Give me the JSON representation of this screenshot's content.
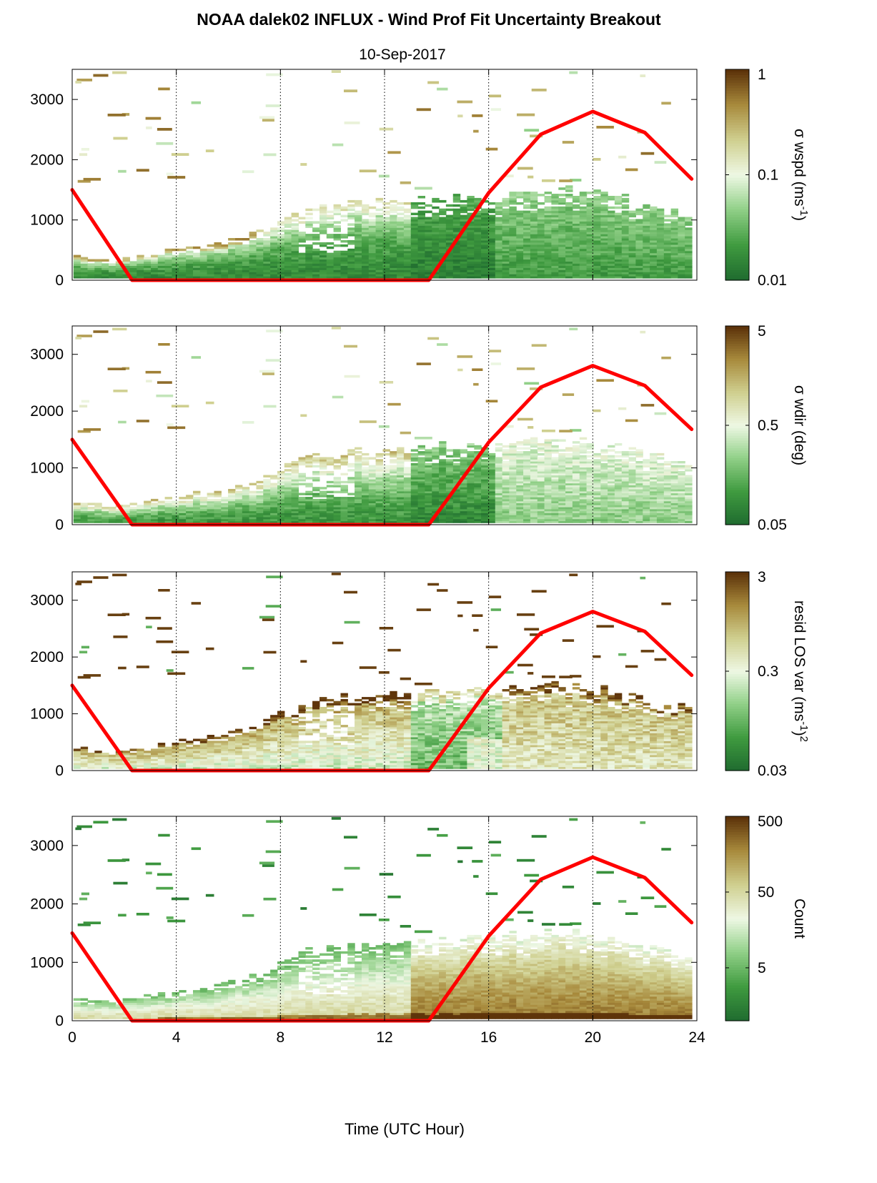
{
  "figure": {
    "title": "NOAA dalek02 INFLUX - Wind Prof Fit Uncertainty Breakout",
    "subtitle": "10-Sep-2017",
    "xlabel": "Time (UTC Hour)"
  },
  "chart_data": [
    {
      "type": "heatmap",
      "panel": "sigma-wspd",
      "xlim": [
        0,
        24
      ],
      "ylim": [
        0,
        3500
      ],
      "xticks": [
        "0",
        "4",
        "8",
        "12",
        "16",
        "20",
        "24"
      ],
      "yticks": [
        "0",
        "1000",
        "2000",
        "3000"
      ],
      "colorbar": {
        "scale": "log",
        "range": [
          0.01,
          1
        ],
        "ticks": [
          "0.01",
          "0.1",
          "1"
        ],
        "label_symbol": "σ",
        "label": "wspd (ms",
        "label_sup": "-1",
        "label_end": ")"
      },
      "grid_x": [
        4,
        8,
        12,
        16,
        20
      ],
      "overlay_line": {
        "color": "#ff0000",
        "points": [
          [
            0,
            1500
          ],
          [
            2.3,
            0
          ],
          [
            13.7,
            0
          ],
          [
            14.5,
            500
          ],
          [
            16,
            1450
          ],
          [
            18,
            2420
          ],
          [
            20,
            2800
          ],
          [
            22,
            2450
          ],
          [
            23.8,
            1680
          ]
        ]
      }
    },
    {
      "type": "heatmap",
      "panel": "sigma-wdir",
      "xlim": [
        0,
        24
      ],
      "ylim": [
        0,
        3500
      ],
      "xticks": [
        "0",
        "4",
        "8",
        "12",
        "16",
        "20",
        "24"
      ],
      "yticks": [
        "0",
        "1000",
        "2000",
        "3000"
      ],
      "colorbar": {
        "scale": "log",
        "range": [
          0.05,
          5
        ],
        "ticks": [
          "0.05",
          "0.5",
          "5"
        ],
        "label_symbol": "σ",
        "label": "wdir (deg)"
      },
      "grid_x": [
        4,
        8,
        12,
        16,
        20
      ],
      "overlay_line": {
        "color": "#ff0000",
        "points": [
          [
            0,
            1500
          ],
          [
            2.3,
            0
          ],
          [
            13.7,
            0
          ],
          [
            14.5,
            500
          ],
          [
            16,
            1450
          ],
          [
            18,
            2420
          ],
          [
            20,
            2800
          ],
          [
            22,
            2450
          ],
          [
            23.8,
            1680
          ]
        ]
      }
    },
    {
      "type": "heatmap",
      "panel": "resid-los-var",
      "xlim": [
        0,
        24
      ],
      "ylim": [
        0,
        3500
      ],
      "xticks": [
        "0",
        "4",
        "8",
        "12",
        "16",
        "20",
        "24"
      ],
      "yticks": [
        "0",
        "1000",
        "2000",
        "3000"
      ],
      "colorbar": {
        "scale": "log",
        "range": [
          0.03,
          3
        ],
        "ticks": [
          "0.03",
          "0.3",
          "3"
        ],
        "label": "resid LOS var (ms",
        "label_sup": "-1",
        "label_end": ")",
        "label_sup2": "2"
      },
      "grid_x": [
        4,
        8,
        12,
        16,
        20
      ],
      "overlay_line": {
        "color": "#ff0000",
        "points": [
          [
            0,
            1500
          ],
          [
            2.3,
            0
          ],
          [
            13.7,
            0
          ],
          [
            14.5,
            500
          ],
          [
            16,
            1450
          ],
          [
            18,
            2420
          ],
          [
            20,
            2800
          ],
          [
            22,
            2450
          ],
          [
            23.8,
            1680
          ]
        ]
      }
    },
    {
      "type": "heatmap",
      "panel": "count",
      "xlim": [
        0,
        24
      ],
      "ylim": [
        0,
        3500
      ],
      "xticks": [
        "0",
        "4",
        "8",
        "12",
        "16",
        "20",
        "24"
      ],
      "yticks": [
        "0",
        "1000",
        "2000",
        "3000"
      ],
      "colorbar": {
        "scale": "log",
        "range": [
          1,
          500
        ],
        "ticks": [
          "5",
          "50",
          "500"
        ],
        "label": "Count"
      },
      "grid_x": [
        4,
        8,
        12,
        16,
        20
      ],
      "overlay_line": {
        "color": "#ff0000",
        "points": [
          [
            0,
            1500
          ],
          [
            2.3,
            0
          ],
          [
            13.7,
            0
          ],
          [
            14.5,
            500
          ],
          [
            16,
            1450
          ],
          [
            18,
            2420
          ],
          [
            20,
            2800
          ],
          [
            22,
            2450
          ],
          [
            23.8,
            1680
          ]
        ]
      }
    }
  ],
  "colors": {
    "colormap": [
      "#1f6b2f",
      "#3f9a3f",
      "#8fcf86",
      "#eef7e4",
      "#cfcf8f",
      "#a88a3c",
      "#5a3008"
    ],
    "line": "#ff0000",
    "grid": "#000000"
  }
}
